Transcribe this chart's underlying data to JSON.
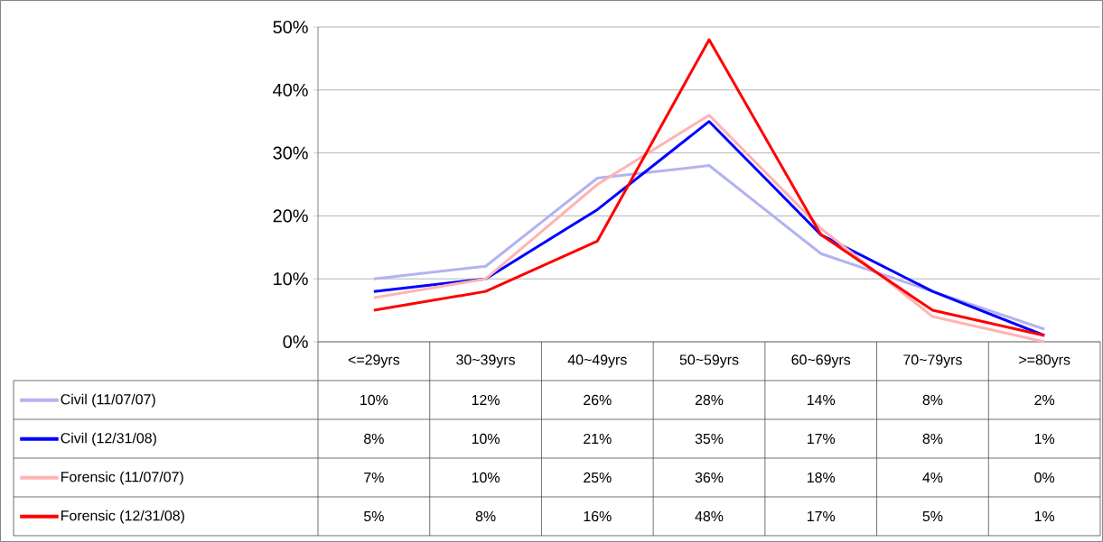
{
  "chart_data": {
    "type": "line",
    "categories": [
      "<=29yrs",
      "30~39yrs",
      "40~49yrs",
      "50~59yrs",
      "60~69yrs",
      "70~79yrs",
      ">=80yrs"
    ],
    "series": [
      {
        "name": "Civil (11/07/07)",
        "color": "#b3b3f0",
        "values": [
          10,
          12,
          26,
          28,
          14,
          8,
          2
        ],
        "value_labels": [
          "10%",
          "12%",
          "26%",
          "28%",
          "14%",
          "8%",
          "2%"
        ]
      },
      {
        "name": "Civil (12/31/08)",
        "color": "#0000ff",
        "values": [
          8,
          10,
          21,
          35,
          17,
          8,
          1
        ],
        "value_labels": [
          "8%",
          "10%",
          "21%",
          "35%",
          "17%",
          "8%",
          "1%"
        ]
      },
      {
        "name": "Forensic (11/07/07)",
        "color": "#ffb3b3",
        "values": [
          7,
          10,
          25,
          36,
          18,
          4,
          0
        ],
        "value_labels": [
          "7%",
          "10%",
          "25%",
          "36%",
          "18%",
          "4%",
          "0%"
        ]
      },
      {
        "name": "Forensic (12/31/08)",
        "color": "#ff0000",
        "values": [
          5,
          8,
          16,
          48,
          17,
          5,
          1
        ],
        "value_labels": [
          "5%",
          "8%",
          "16%",
          "48%",
          "17%",
          "5%",
          "1%"
        ]
      }
    ],
    "ylim": [
      0,
      50
    ],
    "yticks": [
      {
        "value": 0,
        "label": "0%"
      },
      {
        "value": 10,
        "label": "10%"
      },
      {
        "value": 20,
        "label": "20%"
      },
      {
        "value": 30,
        "label": "30%"
      },
      {
        "value": 40,
        "label": "40%"
      },
      {
        "value": 50,
        "label": "50%"
      }
    ],
    "grid": "y",
    "legend": "bottom",
    "marker": "none",
    "line_style": "solid"
  }
}
